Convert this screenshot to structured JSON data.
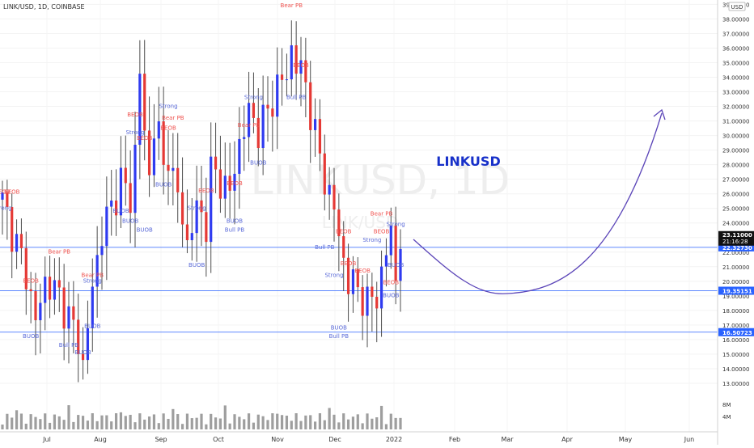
{
  "header": {
    "symbol_label": "LINK/USD, 1D, COINBASE"
  },
  "watermark": {
    "main": "LINKUSD, 1D",
    "sub": "LINK/USD"
  },
  "chart_data": {
    "type": "candlestick",
    "title": "LINKUSD",
    "currency": "USD",
    "y_range": [
      12,
      39.3
    ],
    "y_ticks": [
      13,
      14,
      15,
      16,
      17,
      18,
      19,
      20,
      21,
      22,
      23,
      24,
      25,
      26,
      27,
      28,
      29,
      30,
      31,
      32,
      33,
      34,
      35,
      36,
      37,
      38,
      39
    ],
    "x_ticks": [
      "Jul",
      "Aug",
      "Sep",
      "Oct",
      "Nov",
      "Dec",
      "2022",
      "Feb",
      "Mar",
      "Apr",
      "May",
      "Jun"
    ],
    "last_price": "23.11000",
    "countdown": "21:16:28",
    "levels": [
      {
        "value": 22.3273,
        "label": "22.32730"
      },
      {
        "value": 19.35151,
        "label": "19.35151"
      },
      {
        "value": 16.50723,
        "label": "16.50723"
      }
    ],
    "colors": {
      "up": "#2f3bf0",
      "down": "#e53935",
      "wick": "#4d4d4d",
      "level": "#2962ff",
      "curve": "#5b45b8",
      "title": "#1730c9",
      "label_bear": "#ef5350",
      "label_bull": "#5a6ad8"
    },
    "volume_axis": {
      "ticks": [
        "8M",
        "4M"
      ]
    },
    "annotations": [
      {
        "text": "BEOB",
        "color": "bear",
        "i": 0,
        "price": 26.0
      },
      {
        "text": "BEOB",
        "color": "bear",
        "i": 2,
        "price": 26.0
      },
      {
        "text": "Strong",
        "color": "bull",
        "i": 0,
        "price": 24.9
      },
      {
        "text": "Bear PB",
        "color": "bear",
        "i": 12,
        "price": 21.9
      },
      {
        "text": "BEOB",
        "color": "bear",
        "i": 6,
        "price": 19.9
      },
      {
        "text": "BUOB",
        "color": "bull",
        "i": 6,
        "price": 16.1
      },
      {
        "text": "Bull PB",
        "color": "bull",
        "i": 14,
        "price": 15.5
      },
      {
        "text": "Bear PB",
        "color": "bear",
        "i": 19,
        "price": 20.3
      },
      {
        "text": "Strong",
        "color": "bull",
        "i": 19,
        "price": 19.9
      },
      {
        "text": "BUOB",
        "color": "bull",
        "i": 19,
        "price": 16.8
      },
      {
        "text": "BUOB",
        "color": "bull",
        "i": 17,
        "price": 15.0
      },
      {
        "text": "BEOB",
        "color": "bear",
        "i": 28,
        "price": 31.3
      },
      {
        "text": "BEOB",
        "color": "bear",
        "i": 30,
        "price": 29.7
      },
      {
        "text": "Strong",
        "color": "bull",
        "i": 28,
        "price": 30.1
      },
      {
        "text": "BUOB",
        "color": "bull",
        "i": 27,
        "price": 24.0
      },
      {
        "text": "BUOB",
        "color": "bull",
        "i": 30,
        "price": 23.4
      },
      {
        "text": "BUOB",
        "color": "bull",
        "i": 25,
        "price": 24.7
      },
      {
        "text": "Strong",
        "color": "bull",
        "i": 35,
        "price": 31.9
      },
      {
        "text": "Bear PB",
        "color": "bear",
        "i": 36,
        "price": 31.1
      },
      {
        "text": "BEOB",
        "color": "bear",
        "i": 35,
        "price": 30.4
      },
      {
        "text": "BUOB",
        "color": "bull",
        "i": 34,
        "price": 26.5
      },
      {
        "text": "BEOB",
        "color": "bear",
        "i": 43,
        "price": 26.1
      },
      {
        "text": "Strong",
        "color": "bull",
        "i": 41,
        "price": 24.9
      },
      {
        "text": "BUOB",
        "color": "bull",
        "i": 41,
        "price": 21.0
      },
      {
        "text": "BEOB",
        "color": "bear",
        "i": 49,
        "price": 26.6
      },
      {
        "text": "BUOB",
        "color": "bull",
        "i": 49,
        "price": 24.0
      },
      {
        "text": "Bull PB",
        "color": "bull",
        "i": 49,
        "price": 23.4
      },
      {
        "text": "Strong",
        "color": "bull",
        "i": 53,
        "price": 32.5
      },
      {
        "text": "Bear PB",
        "color": "bear",
        "i": 52,
        "price": 30.6
      },
      {
        "text": "BUOB",
        "color": "bull",
        "i": 54,
        "price": 28.0
      },
      {
        "text": "Bear PB",
        "color": "bear",
        "i": 61,
        "price": 38.8
      },
      {
        "text": "BEOB",
        "color": "bear",
        "i": 63,
        "price": 34.7
      },
      {
        "text": "Bull PB",
        "color": "bull",
        "i": 62,
        "price": 32.5
      },
      {
        "text": "BEOB",
        "color": "bear",
        "i": 72,
        "price": 23.3
      },
      {
        "text": "Bull PB",
        "color": "bull",
        "i": 68,
        "price": 22.2
      },
      {
        "text": "BEOB",
        "color": "bear",
        "i": 73,
        "price": 21.1
      },
      {
        "text": "Strong",
        "color": "bull",
        "i": 70,
        "price": 20.3
      },
      {
        "text": "BEOB",
        "color": "bear",
        "i": 76,
        "price": 20.6
      },
      {
        "text": "BUOB",
        "color": "bull",
        "i": 71,
        "price": 16.7
      },
      {
        "text": "Bull PB",
        "color": "bull",
        "i": 71,
        "price": 16.1
      },
      {
        "text": "Strong",
        "color": "bull",
        "i": 78,
        "price": 22.7
      },
      {
        "text": "Bear PB",
        "color": "bear",
        "i": 80,
        "price": 24.5
      },
      {
        "text": "Strong",
        "color": "bull",
        "i": 83,
        "price": 23.8
      },
      {
        "text": "BEOB",
        "color": "bear",
        "i": 80,
        "price": 23.3
      },
      {
        "text": "BUOB",
        "color": "bull",
        "i": 83,
        "price": 21.0
      },
      {
        "text": "BEOB",
        "color": "bear",
        "i": 82,
        "price": 19.8
      },
      {
        "text": "BUOB",
        "color": "bull",
        "i": 82,
        "price": 18.9
      }
    ]
  }
}
